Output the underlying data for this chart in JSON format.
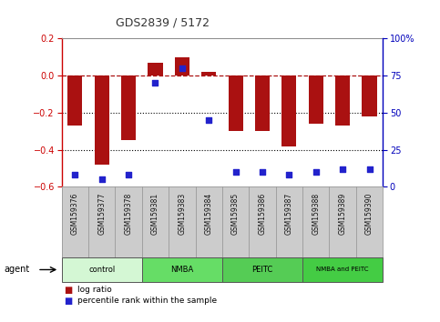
{
  "title": "GDS2839 / 5172",
  "samples": [
    "GSM159376",
    "GSM159377",
    "GSM159378",
    "GSM159381",
    "GSM159383",
    "GSM159384",
    "GSM159385",
    "GSM159386",
    "GSM159387",
    "GSM159388",
    "GSM159389",
    "GSM159390"
  ],
  "log_ratio": [
    -0.27,
    -0.48,
    -0.35,
    0.07,
    0.1,
    0.02,
    -0.3,
    -0.3,
    -0.38,
    -0.26,
    -0.27,
    -0.22
  ],
  "percentile_rank": [
    8,
    5,
    8,
    70,
    80,
    45,
    10,
    10,
    8,
    10,
    12,
    12
  ],
  "bar_color": "#aa1111",
  "dot_color": "#2222cc",
  "background_color": "#ffffff",
  "plot_bg_color": "#ffffff",
  "ylim_left": [
    -0.6,
    0.2
  ],
  "ylim_right": [
    0,
    100
  ],
  "yticks_left": [
    -0.6,
    -0.4,
    -0.2,
    0.0,
    0.2
  ],
  "yticks_right": [
    0,
    25,
    50,
    75,
    100
  ],
  "ytick_labels_right": [
    "0",
    "25",
    "50",
    "75",
    "100%"
  ],
  "dotted_lines": [
    -0.2,
    -0.4
  ],
  "groups": [
    {
      "label": "control",
      "start": 0,
      "end": 3,
      "color": "#d4f7d4"
    },
    {
      "label": "NMBA",
      "start": 3,
      "end": 6,
      "color": "#66dd66"
    },
    {
      "label": "PEITC",
      "start": 6,
      "end": 9,
      "color": "#55cc55"
    },
    {
      "label": "NMBA and PEITC",
      "start": 9,
      "end": 12,
      "color": "#44cc44"
    }
  ],
  "legend_items": [
    {
      "label": "log ratio",
      "color": "#aa1111"
    },
    {
      "label": "percentile rank within the sample",
      "color": "#2222cc"
    }
  ],
  "bar_width": 0.55,
  "left_axis_color": "#cc0000",
  "right_axis_color": "#0000bb",
  "label_bg": "#cccccc",
  "label_border": "#999999"
}
